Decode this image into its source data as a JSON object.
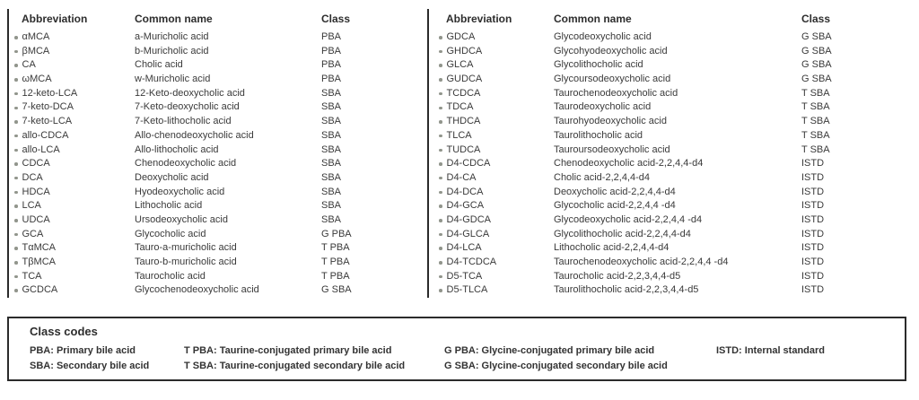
{
  "colors": {
    "text": "#3a3a3a",
    "heading": "#2d2d2d",
    "bullet": "#91958c",
    "rule": "#2b2b2b",
    "background": "#ffffff"
  },
  "icons": {
    "bullet": "small-round-dot"
  },
  "tables": [
    {
      "headers": {
        "abbr": "Abbreviation",
        "name": "Common name",
        "cls": "Class"
      },
      "rows": [
        {
          "abbr": "αMCA",
          "name": "a-Muricholic acid",
          "cls": "PBA"
        },
        {
          "abbr": "βMCA",
          "name": "b-Muricholic acid",
          "cls": "PBA"
        },
        {
          "abbr": "CA",
          "name": "Cholic acid",
          "cls": "PBA"
        },
        {
          "abbr": "ωMCA",
          "name": "w-Muricholic acid",
          "cls": "PBA"
        },
        {
          "abbr": "12-keto-LCA",
          "name": "12-Keto-deoxycholic acid",
          "cls": "SBA"
        },
        {
          "abbr": "7-keto-DCA",
          "name": "7-Keto-deoxycholic acid",
          "cls": "SBA"
        },
        {
          "abbr": "7-keto-LCA",
          "name": "7-Keto-lithocholic acid",
          "cls": "SBA"
        },
        {
          "abbr": "allo-CDCA",
          "name": "Allo-chenodeoxycholic acid",
          "cls": "SBA"
        },
        {
          "abbr": "allo-LCA",
          "name": "Allo-lithocholic acid",
          "cls": "SBA"
        },
        {
          "abbr": "CDCA",
          "name": "Chenodeoxycholic acid",
          "cls": "SBA"
        },
        {
          "abbr": "DCA",
          "name": "Deoxycholic acid",
          "cls": "SBA"
        },
        {
          "abbr": "HDCA",
          "name": "Hyodeoxycholic acid",
          "cls": "SBA"
        },
        {
          "abbr": "LCA",
          "name": "Lithocholic acid",
          "cls": "SBA"
        },
        {
          "abbr": "UDCA",
          "name": "Ursodeoxycholic acid",
          "cls": "SBA"
        },
        {
          "abbr": "GCA",
          "name": "Glycocholic acid",
          "cls": "G PBA"
        },
        {
          "abbr": "TαMCA",
          "name": "Tauro-a-muricholic acid",
          "cls": "T PBA"
        },
        {
          "abbr": "TβMCA",
          "name": "Tauro-b-muricholic acid",
          "cls": "T PBA"
        },
        {
          "abbr": "TCA",
          "name": "Taurocholic acid",
          "cls": "T PBA"
        },
        {
          "abbr": "GCDCA",
          "name": "Glycochenodeoxycholic acid",
          "cls": "G SBA"
        }
      ]
    },
    {
      "headers": {
        "abbr": "Abbreviation",
        "name": "Common name",
        "cls": "Class"
      },
      "rows": [
        {
          "abbr": "GDCA",
          "name": "Glycodeoxycholic acid",
          "cls": "G SBA"
        },
        {
          "abbr": "GHDCA",
          "name": "Glycohyodeoxycholic acid",
          "cls": "G SBA"
        },
        {
          "abbr": "GLCA",
          "name": "Glycolithocholic acid",
          "cls": "G SBA"
        },
        {
          "abbr": "GUDCA",
          "name": "Glycoursodeoxycholic acid",
          "cls": "G SBA"
        },
        {
          "abbr": "TCDCA",
          "name": "Taurochenodeoxycholic acid",
          "cls": "T SBA"
        },
        {
          "abbr": "TDCA",
          "name": "Taurodeoxycholic acid",
          "cls": "T SBA"
        },
        {
          "abbr": "THDCA",
          "name": "Taurohyodeoxycholic acid",
          "cls": "T SBA"
        },
        {
          "abbr": "TLCA",
          "name": "Taurolithocholic acid",
          "cls": "T SBA"
        },
        {
          "abbr": "TUDCA",
          "name": "Tauroursodeoxycholic acid",
          "cls": "T SBA"
        },
        {
          "abbr": "D4-CDCA",
          "name": "Chenodeoxycholic acid-2,2,4,4-d4",
          "cls": "ISTD"
        },
        {
          "abbr": "D4-CA",
          "name": "Cholic acid-2,2,4,4-d4",
          "cls": "ISTD"
        },
        {
          "abbr": "D4-DCA",
          "name": "Deoxycholic acid-2,2,4,4-d4",
          "cls": "ISTD"
        },
        {
          "abbr": "D4-GCA",
          "name": "Glycocholic acid-2,2,4,4 -d4",
          "cls": "ISTD"
        },
        {
          "abbr": "D4-GDCA",
          "name": "Glycodeoxycholic acid-2,2,4,4 -d4",
          "cls": "ISTD"
        },
        {
          "abbr": "D4-GLCA",
          "name": "Glycolithocholic acid-2,2,4,4-d4",
          "cls": "ISTD"
        },
        {
          "abbr": "D4-LCA",
          "name": "Lithocholic acid-2,2,4,4-d4",
          "cls": "ISTD"
        },
        {
          "abbr": "D4-TCDCA",
          "name": "Taurochenodeoxycholic acid-2,2,4,4 -d4",
          "cls": "ISTD"
        },
        {
          "abbr": "D5-TCA",
          "name": "Taurocholic acid-2,2,3,4,4-d5",
          "cls": "ISTD"
        },
        {
          "abbr": "D5-TLCA",
          "name": "Taurolithocholic acid-2,2,3,4,4-d5",
          "cls": "ISTD"
        }
      ]
    }
  ],
  "class_codes": {
    "title": "Class codes",
    "grid": [
      [
        "PBA: Primary bile acid",
        "T PBA: Taurine-conjugated primary bile acid",
        "G PBA: Glycine-conjugated primary bile acid",
        "ISTD: Internal standard"
      ],
      [
        "SBA: Secondary bile acid",
        "T SBA: Taurine-conjugated secondary bile acid",
        "G SBA: Glycine-conjugated secondary bile acid",
        ""
      ]
    ]
  }
}
